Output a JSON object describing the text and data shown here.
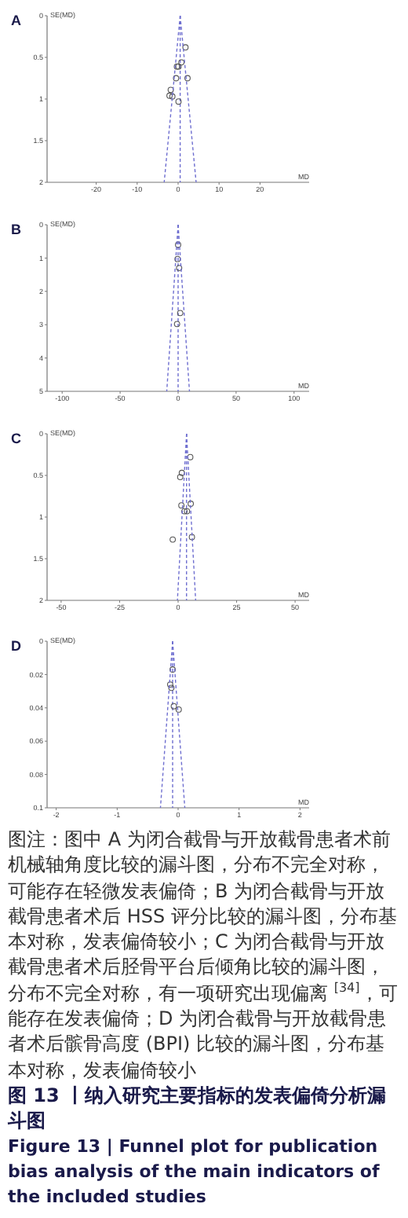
{
  "chart_data": [
    {
      "type": "scatter",
      "title": "A",
      "xlabel": "MD",
      "ylabel": "SE(MD)",
      "xlim": [
        -32,
        32
      ],
      "ylim": [
        2,
        0
      ],
      "xticks": [
        -20,
        -10,
        0,
        10,
        20
      ],
      "yticks": [
        0,
        0.5,
        1,
        1.5,
        2
      ],
      "series": [
        {
          "marker": "circle",
          "color": "#555555",
          "x": [
            1.8,
            0.8,
            0.1,
            -0.3,
            -0.5,
            2.3,
            -1.8,
            -2.1,
            -1.4,
            0.1
          ],
          "values": [
            0.38,
            0.56,
            0.61,
            0.61,
            0.75,
            0.75,
            0.89,
            0.96,
            0.97,
            1.03
          ]
        },
        {
          "type": "line",
          "color": "#6f6fd0",
          "line_style": "dashed",
          "x": [
            0.5,
            -3.4
          ],
          "values": [
            0,
            2
          ]
        },
        {
          "type": "line",
          "color": "#6f6fd0",
          "line_style": "dashed",
          "x": [
            0.5,
            4.4
          ],
          "values": [
            0,
            2
          ]
        }
      ],
      "ref_lines": [
        {
          "axis": "x",
          "value": 0.5,
          "color": "#6f6fd0",
          "line_style": "dashed"
        }
      ]
    },
    {
      "type": "scatter",
      "title": "B",
      "xlabel": "MD",
      "ylabel": "SE(MD)",
      "xlim": [
        -113,
        113
      ],
      "ylim": [
        5,
        0
      ],
      "xticks": [
        -100,
        -50,
        0,
        50,
        100
      ],
      "yticks": [
        0,
        1,
        2,
        3,
        4,
        5
      ],
      "series": [
        {
          "marker": "circle",
          "color": "#555555",
          "x": [
            0,
            -0.5,
            0.9,
            1.8,
            -0.9
          ],
          "values": [
            0.6,
            1.03,
            1.3,
            2.65,
            2.98
          ]
        },
        {
          "type": "line",
          "color": "#6f6fd0",
          "line_style": "dashed",
          "x": [
            0,
            -9.8
          ],
          "values": [
            0,
            5
          ]
        },
        {
          "type": "line",
          "color": "#6f6fd0",
          "line_style": "dashed",
          "x": [
            0,
            9.8
          ],
          "values": [
            0,
            5
          ]
        }
      ],
      "ref_lines": [
        {
          "axis": "x",
          "value": 0,
          "color": "#6f6fd0",
          "line_style": "dashed"
        }
      ]
    },
    {
      "type": "scatter",
      "title": "C",
      "xlabel": "MD",
      "ylabel": "SE(MD)",
      "xlim": [
        -56,
        56
      ],
      "ylim": [
        2,
        0
      ],
      "xticks": [
        -50,
        -25,
        0,
        25,
        50
      ],
      "yticks": [
        0,
        0.5,
        1,
        1.5,
        2
      ],
      "series": [
        {
          "marker": "circle",
          "color": "#555555",
          "x": [
            5.2,
            1.6,
            0.9,
            1.4,
            5.4,
            2.7,
            3.8,
            -2.3,
            5.9
          ],
          "values": [
            0.28,
            0.47,
            0.52,
            0.86,
            0.84,
            0.93,
            0.93,
            1.27,
            1.24
          ]
        },
        {
          "type": "line",
          "color": "#6f6fd0",
          "line_style": "dashed",
          "x": [
            3.6,
            -0.3
          ],
          "values": [
            0,
            2
          ]
        },
        {
          "type": "line",
          "color": "#6f6fd0",
          "line_style": "dashed",
          "x": [
            3.6,
            7.5
          ],
          "values": [
            0,
            2
          ]
        }
      ],
      "ref_lines": [
        {
          "axis": "x",
          "value": 3.6,
          "color": "#6f6fd0",
          "line_style": "dashed"
        }
      ]
    },
    {
      "type": "scatter",
      "title": "D",
      "xlabel": "MD",
      "ylabel": "SE(MD)",
      "xlim": [
        -2.15,
        2.15
      ],
      "ylim": [
        0.1,
        0
      ],
      "xticks": [
        -2,
        -1,
        0,
        1,
        2
      ],
      "yticks": [
        0,
        0.02,
        0.04,
        0.06,
        0.08,
        0.1
      ],
      "series": [
        {
          "marker": "circle",
          "color": "#555555",
          "x": [
            -0.09,
            -0.13,
            -0.11,
            -0.07,
            0.01
          ],
          "values": [
            0.017,
            0.026,
            0.028,
            0.039,
            0.041
          ]
        },
        {
          "type": "line",
          "color": "#6f6fd0",
          "line_style": "dashed",
          "x": [
            -0.09,
            -0.29
          ],
          "values": [
            0,
            0.1
          ]
        },
        {
          "type": "line",
          "color": "#6f6fd0",
          "line_style": "dashed",
          "x": [
            -0.09,
            0.11
          ],
          "values": [
            0,
            0.1
          ]
        }
      ],
      "ref_lines": [
        {
          "axis": "x",
          "value": -0.09,
          "color": "#6f6fd0",
          "line_style": "dashed"
        }
      ],
      "annotations": [
        "图注：图中 A 为闭合截骨与开放截骨患者术前机械轴角度比较的漏斗图，分布不完全对称，可能存在轻微发表偏倚；B 为闭合截骨与开放截骨患者术后 HSS 评分比较的漏斗图，分布基本对称，发表偏倚较小；C 为闭合截骨与开放截骨患者术后胫骨平台后倾角比较的漏斗图，分布不完全对称，有一项研究出现偏离 $^{[34]}$，可能存在发表偏倚；D 为闭合截骨与开放截骨患者术后髌骨高度 (BPI) 比较的漏斗图，分布基本对称，发表偏倚较小",
        "**图 13 丨纳入研究主要指标的发表偏倚分析漏斗图**",
        "**Figure 13 | Funnel plot for publication bias analysis of the main indicators of the included studies**"
      ]
    }
  ]
}
